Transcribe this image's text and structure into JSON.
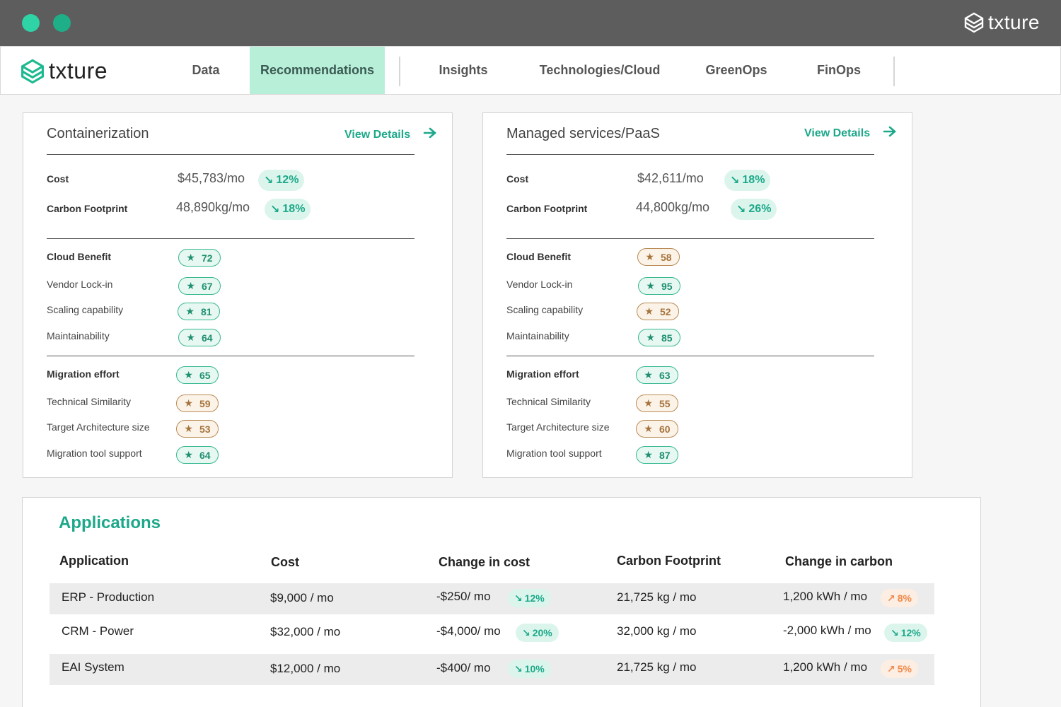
{
  "brand": {
    "name": "txture",
    "accent": "#1da88a"
  },
  "nav": {
    "tabs": [
      {
        "label": "Data"
      },
      {
        "label": "Recommendations",
        "active": true
      },
      {
        "label": "Insights"
      },
      {
        "label": "Technologies/Cloud"
      },
      {
        "label": "GreenOps"
      },
      {
        "label": "FinOps"
      }
    ]
  },
  "cards": [
    {
      "title": "Containerization",
      "view_details": "View Details",
      "cost": {
        "label": "Cost",
        "value": "$45,783/mo",
        "change": "12%"
      },
      "carbon": {
        "label": "Carbon Footprint",
        "value": "48,890kg/mo",
        "change": "18%"
      },
      "cloud_benefit": {
        "label": "Cloud Benefit",
        "score": "72",
        "tone": "good"
      },
      "benefit_items": [
        {
          "label": "Vendor Lock-in",
          "score": "67",
          "tone": "good"
        },
        {
          "label": "Scaling capability",
          "score": "81",
          "tone": "good"
        },
        {
          "label": "Maintainability",
          "score": "64",
          "tone": "good"
        }
      ],
      "migration_effort": {
        "label": "Migration effort",
        "score": "65",
        "tone": "good"
      },
      "effort_items": [
        {
          "label": "Technical Similarity",
          "score": "59",
          "tone": "warn"
        },
        {
          "label": "Target Architecture size",
          "score": "53",
          "tone": "warn"
        },
        {
          "label": "Migration tool support",
          "score": "64",
          "tone": "good"
        }
      ]
    },
    {
      "title": "Managed services/PaaS",
      "view_details": "View Details",
      "cost": {
        "label": "Cost",
        "value": "$42,611/mo",
        "change": "18%"
      },
      "carbon": {
        "label": "Carbon Footprint",
        "value": "44,800kg/mo",
        "change": "26%"
      },
      "cloud_benefit": {
        "label": "Cloud Benefit",
        "score": "58",
        "tone": "warn"
      },
      "benefit_items": [
        {
          "label": "Vendor Lock-in",
          "score": "95",
          "tone": "good"
        },
        {
          "label": "Scaling capability",
          "score": "52",
          "tone": "warn"
        },
        {
          "label": "Maintainability",
          "score": "85",
          "tone": "good"
        }
      ],
      "migration_effort": {
        "label": "Migration effort",
        "score": "63",
        "tone": "good"
      },
      "effort_items": [
        {
          "label": "Technical Similarity",
          "score": "55",
          "tone": "warn"
        },
        {
          "label": "Target Architecture size",
          "score": "60",
          "tone": "warn"
        },
        {
          "label": "Migration tool support",
          "score": "87",
          "tone": "good"
        }
      ]
    }
  ],
  "applications": {
    "title": "Applications",
    "columns": [
      "Application",
      "Cost",
      "Change in cost",
      "Carbon Footprint",
      "Change in carbon"
    ],
    "rows": [
      {
        "name": "ERP - Production",
        "cost": "$9,000 / mo",
        "change_cost": "-$250/ mo",
        "change_cost_pct": "12%",
        "carbon": "21,725 kg / mo",
        "change_carbon": "1,200 kWh / mo",
        "change_carbon_pct": "8%",
        "carbon_direction": "up"
      },
      {
        "name": "CRM - Power",
        "cost": "$32,000 / mo",
        "change_cost": "-$4,000/ mo",
        "change_cost_pct": "20%",
        "carbon": "32,000 kg / mo",
        "change_carbon": "-2,000 kWh / mo",
        "change_carbon_pct": "12%",
        "carbon_direction": "down"
      },
      {
        "name": "EAI System",
        "cost": "$12,000 / mo",
        "change_cost": "-$400/ mo",
        "change_cost_pct": "10%",
        "carbon": "21,725 kg / mo",
        "change_carbon": "1,200 kWh / mo",
        "change_carbon_pct": "5%",
        "carbon_direction": "up"
      }
    ]
  }
}
